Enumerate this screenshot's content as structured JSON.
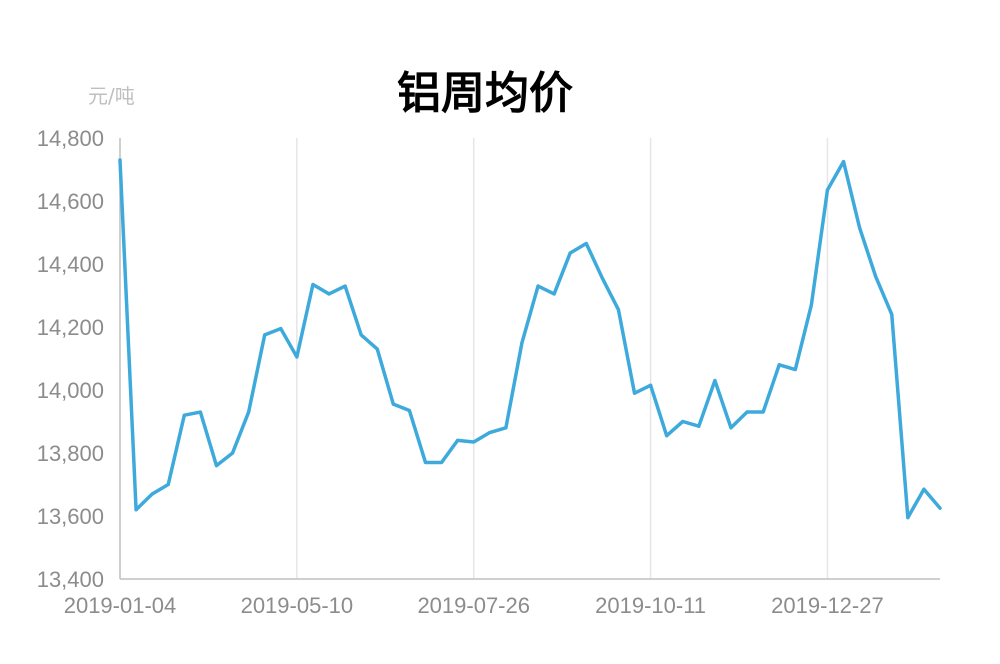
{
  "chart_data": {
    "type": "line",
    "title": "铝周均价",
    "ylabel": "元/吨",
    "ylim": [
      13400,
      14800
    ],
    "yticks": [
      "14,800",
      "14,600",
      "14,400",
      "14,200",
      "14,000",
      "13,800",
      "13,600",
      "13,400"
    ],
    "ytick_values": [
      14800,
      14600,
      14400,
      14200,
      14000,
      13800,
      13600,
      13400
    ],
    "xtick_labels": [
      "2019-01-04",
      "2019-05-10",
      "2019-07-26",
      "2019-10-11",
      "2019-12-27"
    ],
    "xtick_indices": [
      0,
      11,
      22,
      33,
      44
    ],
    "grid": {
      "vertical": true,
      "horizontal": false
    },
    "series": [
      {
        "color": "#3eaadc",
        "values": [
          14730,
          13620,
          13670,
          13700,
          13920,
          13930,
          13760,
          13800,
          13930,
          14175,
          14195,
          14105,
          14335,
          14305,
          14330,
          14175,
          14130,
          13955,
          13935,
          13770,
          13770,
          13840,
          13835,
          13865,
          13880,
          14150,
          14330,
          14305,
          14435,
          14465,
          14355,
          14255,
          13990,
          14015,
          13855,
          13900,
          13885,
          14030,
          13880,
          13930,
          13930,
          14080,
          14065,
          14270,
          14635,
          14725,
          14515,
          14360,
          14240,
          13595,
          13685,
          13625
        ]
      }
    ]
  }
}
